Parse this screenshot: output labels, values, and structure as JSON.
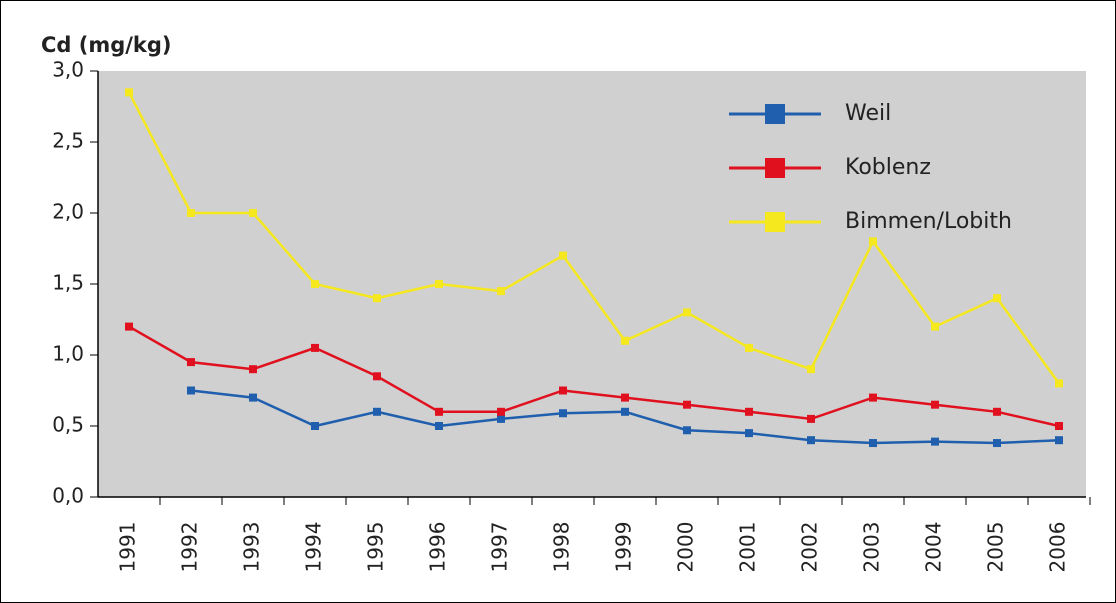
{
  "chart_data": {
    "type": "line",
    "title": "Cd (mg/kg)",
    "categories": [
      "1991",
      "1992",
      "1993",
      "1994",
      "1995",
      "1996",
      "1997",
      "1998",
      "1999",
      "2000",
      "2001",
      "2002",
      "2003",
      "2004",
      "2005",
      "2006"
    ],
    "series": [
      {
        "name": "Weil",
        "color": "#1f5fae",
        "values": [
          null,
          0.75,
          0.7,
          0.5,
          0.6,
          0.5,
          0.55,
          0.59,
          0.6,
          0.47,
          0.45,
          0.4,
          0.38,
          0.39,
          0.38,
          0.4
        ]
      },
      {
        "name": "Koblenz",
        "color": "#e0101e",
        "values": [
          1.2,
          0.95,
          0.9,
          1.05,
          0.85,
          0.6,
          0.6,
          0.75,
          0.7,
          0.65,
          0.6,
          0.55,
          0.7,
          0.65,
          0.6,
          0.5
        ]
      },
      {
        "name": "Bimmen/Lobith",
        "color": "#f5e81e",
        "values": [
          2.85,
          2.0,
          2.0,
          1.5,
          1.4,
          1.5,
          1.45,
          1.7,
          1.1,
          1.3,
          1.05,
          0.9,
          1.8,
          1.2,
          1.4,
          0.8
        ]
      }
    ],
    "ylim": [
      0,
      3
    ],
    "yticks": [
      {
        "value": 0,
        "label": "0,0"
      },
      {
        "value": 0.5,
        "label": "0,5"
      },
      {
        "value": 1,
        "label": "1,0"
      },
      {
        "value": 1.5,
        "label": "1,5"
      },
      {
        "value": 2,
        "label": "2,0"
      },
      {
        "value": 2.5,
        "label": "2,5"
      },
      {
        "value": 3,
        "label": "3,0"
      }
    ],
    "grid": false,
    "legend": "top-right"
  }
}
